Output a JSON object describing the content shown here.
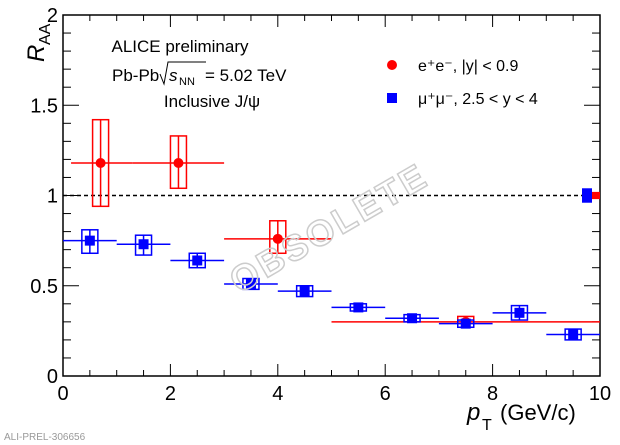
{
  "chart_data": {
    "type": "scatter",
    "title_lines": [
      "ALICE preliminary",
      "Pb-Pb",
      "= 5.02 TeV",
      "Inclusive J/ψ"
    ],
    "sqrt_s_label": "s",
    "sqrt_s_sub": "NN",
    "xlabel": "p",
    "xlabel_sub": "T",
    "xlabel_unit": "(GeV/c)",
    "ylabel": "R",
    "ylabel_sub": "AA",
    "xlim": [
      0,
      10
    ],
    "ylim": [
      0,
      2
    ],
    "x_ticks": [
      "0",
      "2",
      "4",
      "6",
      "8",
      "10"
    ],
    "y_ticks": [
      "0",
      "0.5",
      "1",
      "1.5",
      "2"
    ],
    "reference_line": 1,
    "watermark": "OBSOLETE",
    "footer": "ALI-PREL-306656",
    "legend_position": "top-right",
    "series": [
      {
        "name": "e⁺e⁻, |y| < 0.9",
        "color": "#ff0000",
        "marker": "circle",
        "points": [
          {
            "x": 0.7,
            "xlo": 0.15,
            "xhi": 1.3,
            "y": 1.18,
            "sys": [
              0.94,
              1.42
            ]
          },
          {
            "x": 2.15,
            "xlo": 1.3,
            "xhi": 3.0,
            "y": 1.18,
            "sys": [
              1.04,
              1.33
            ]
          },
          {
            "x": 4.0,
            "xlo": 3.0,
            "xhi": 5.0,
            "y": 0.76,
            "sys": [
              0.68,
              0.86
            ]
          },
          {
            "x": 7.5,
            "xlo": 5.0,
            "xhi": 10.0,
            "y": 0.3,
            "sys": [
              0.27,
              0.33
            ]
          }
        ],
        "global_unc": 0.02
      },
      {
        "name": "μ⁺μ⁻, 2.5 < y < 4",
        "color": "#0000ff",
        "marker": "square",
        "points": [
          {
            "x": 0.5,
            "xlo": 0,
            "xhi": 1,
            "y": 0.75,
            "sys": [
              0.68,
              0.81
            ]
          },
          {
            "x": 1.5,
            "xlo": 1,
            "xhi": 2,
            "y": 0.73,
            "sys": [
              0.67,
              0.78
            ]
          },
          {
            "x": 2.5,
            "xlo": 2,
            "xhi": 3,
            "y": 0.64,
            "sys": [
              0.6,
              0.68
            ]
          },
          {
            "x": 3.5,
            "xlo": 3,
            "xhi": 4,
            "y": 0.51,
            "sys": [
              0.48,
              0.54
            ]
          },
          {
            "x": 4.5,
            "xlo": 4,
            "xhi": 5,
            "y": 0.47,
            "sys": [
              0.44,
              0.5
            ]
          },
          {
            "x": 5.5,
            "xlo": 5,
            "xhi": 6,
            "y": 0.38,
            "sys": [
              0.36,
              0.4
            ]
          },
          {
            "x": 6.5,
            "xlo": 6,
            "xhi": 7,
            "y": 0.32,
            "sys": [
              0.3,
              0.34
            ]
          },
          {
            "x": 7.5,
            "xlo": 7,
            "xhi": 8,
            "y": 0.29,
            "sys": [
              0.27,
              0.31
            ]
          },
          {
            "x": 8.5,
            "xlo": 8,
            "xhi": 9,
            "y": 0.35,
            "sys": [
              0.31,
              0.39
            ]
          },
          {
            "x": 9.5,
            "xlo": 9,
            "xhi": 10,
            "y": 0.23,
            "sys": [
              0.2,
              0.26
            ]
          }
        ],
        "global_unc": 0.04
      }
    ]
  }
}
